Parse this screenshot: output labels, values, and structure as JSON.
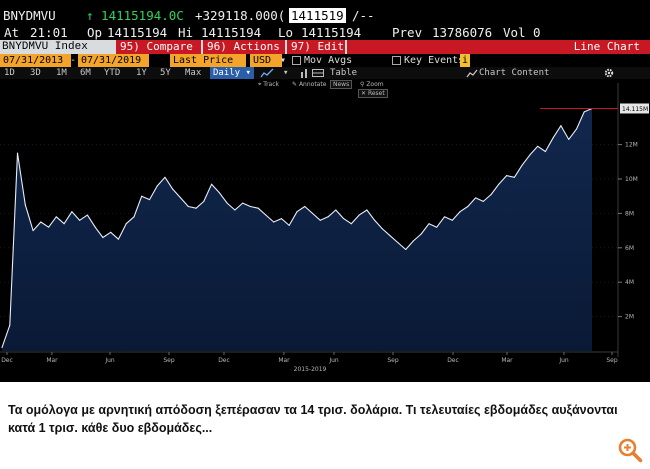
{
  "header": {
    "ticker": "BNYDMVU",
    "last_price": "↑ 14115194.0C",
    "change": "+329118.000(",
    "ticker_box": "1411519",
    "trailing": "/--",
    "at_label": "At",
    "time": "21:01",
    "op_label": "Op",
    "open": "14115194",
    "hi_label": "Hi",
    "high": "14115194",
    "lo_label": "Lo",
    "low": "14115194",
    "prev_label": "Prev",
    "prev": "13786076",
    "vol_label": "Vol",
    "vol": "0"
  },
  "menu": {
    "index_label": "BNYDMVU Index",
    "compare": "95) Compare",
    "actions": "96) Actions ▾",
    "edit": "97) Edit ▾",
    "line_chart": "Line Chart"
  },
  "controls": {
    "start_date": "07/31/2013",
    "end_date": "07/31/2019",
    "field": "Last Price",
    "currency": "USD",
    "mov_avgs": "Mov Avgs",
    "key_events": "Key Events",
    "key_events_badge": "i",
    "chart_content": "Chart Content",
    "settings_icon": "gear-icon"
  },
  "periods": [
    "1D",
    "3D",
    "1M",
    "6M",
    "YTD",
    "1Y",
    "5Y",
    "Max"
  ],
  "frequency": "Daily ▾",
  "table_label": "Table",
  "chart_tools": {
    "track": "Track",
    "annotate": "Annotate",
    "news": "News",
    "zoom": "Zoom",
    "reset": "Reset"
  },
  "chart_data": {
    "type": "line",
    "y_ticks": [
      "2M",
      "4M",
      "6M",
      "8M",
      "10M",
      "12M"
    ],
    "last_value_label": "14.115M",
    "x_ticks": [
      "Dec",
      "Mar",
      "Jun",
      "Sep",
      "Dec",
      "Mar",
      "Jun",
      "Sep",
      "Dec",
      "Mar",
      "Jun",
      "Sep"
    ],
    "x_period_label": "2015-2019",
    "ylim": [
      0,
      15
    ],
    "series": [
      {
        "values": [
          0.2,
          1.5,
          11.5,
          8.5,
          7.0,
          7.5,
          7.2,
          7.8,
          7.4,
          8.1,
          7.6,
          7.9,
          7.2,
          6.6,
          6.9,
          6.5,
          7.4,
          7.8,
          9.0,
          8.8,
          9.6,
          10.1,
          9.4,
          8.9,
          8.4,
          8.3,
          8.7,
          9.7,
          9.2,
          8.6,
          8.2,
          8.6,
          8.4,
          8.3,
          7.9,
          7.5,
          7.7,
          7.3,
          8.1,
          8.4,
          8.0,
          7.6,
          7.8,
          8.2,
          7.7,
          7.4,
          7.9,
          8.2,
          7.6,
          7.1,
          6.7,
          6.3,
          5.9,
          6.4,
          6.8,
          7.4,
          7.2,
          7.8,
          7.6,
          8.1,
          8.4,
          8.9,
          8.7,
          9.1,
          9.7,
          10.2,
          10.1,
          10.8,
          11.4,
          11.9,
          11.6,
          12.4,
          13.1,
          12.3,
          12.9,
          13.9,
          14.1
        ]
      }
    ]
  },
  "caption": "Τα ομόλογα με αρνητική απόδοση ξεπέρασαν τα 14 τρισ. δολάρια. Τι τελευταίες εβδομάδες αυξάνονται κατά 1 τρισ. κάθε δυο εβδομάδες...",
  "zoom_icon": "magnify-plus-icon",
  "colors": {
    "accent_red": "#c71823",
    "accent_orange": "#f3a42a",
    "ticker_yellow": "#f2c230",
    "uptick_green": "#2fd45a",
    "chart_fill": "#11274d",
    "line": "#e8eef8",
    "zoom_icon": "#e87e2f"
  }
}
